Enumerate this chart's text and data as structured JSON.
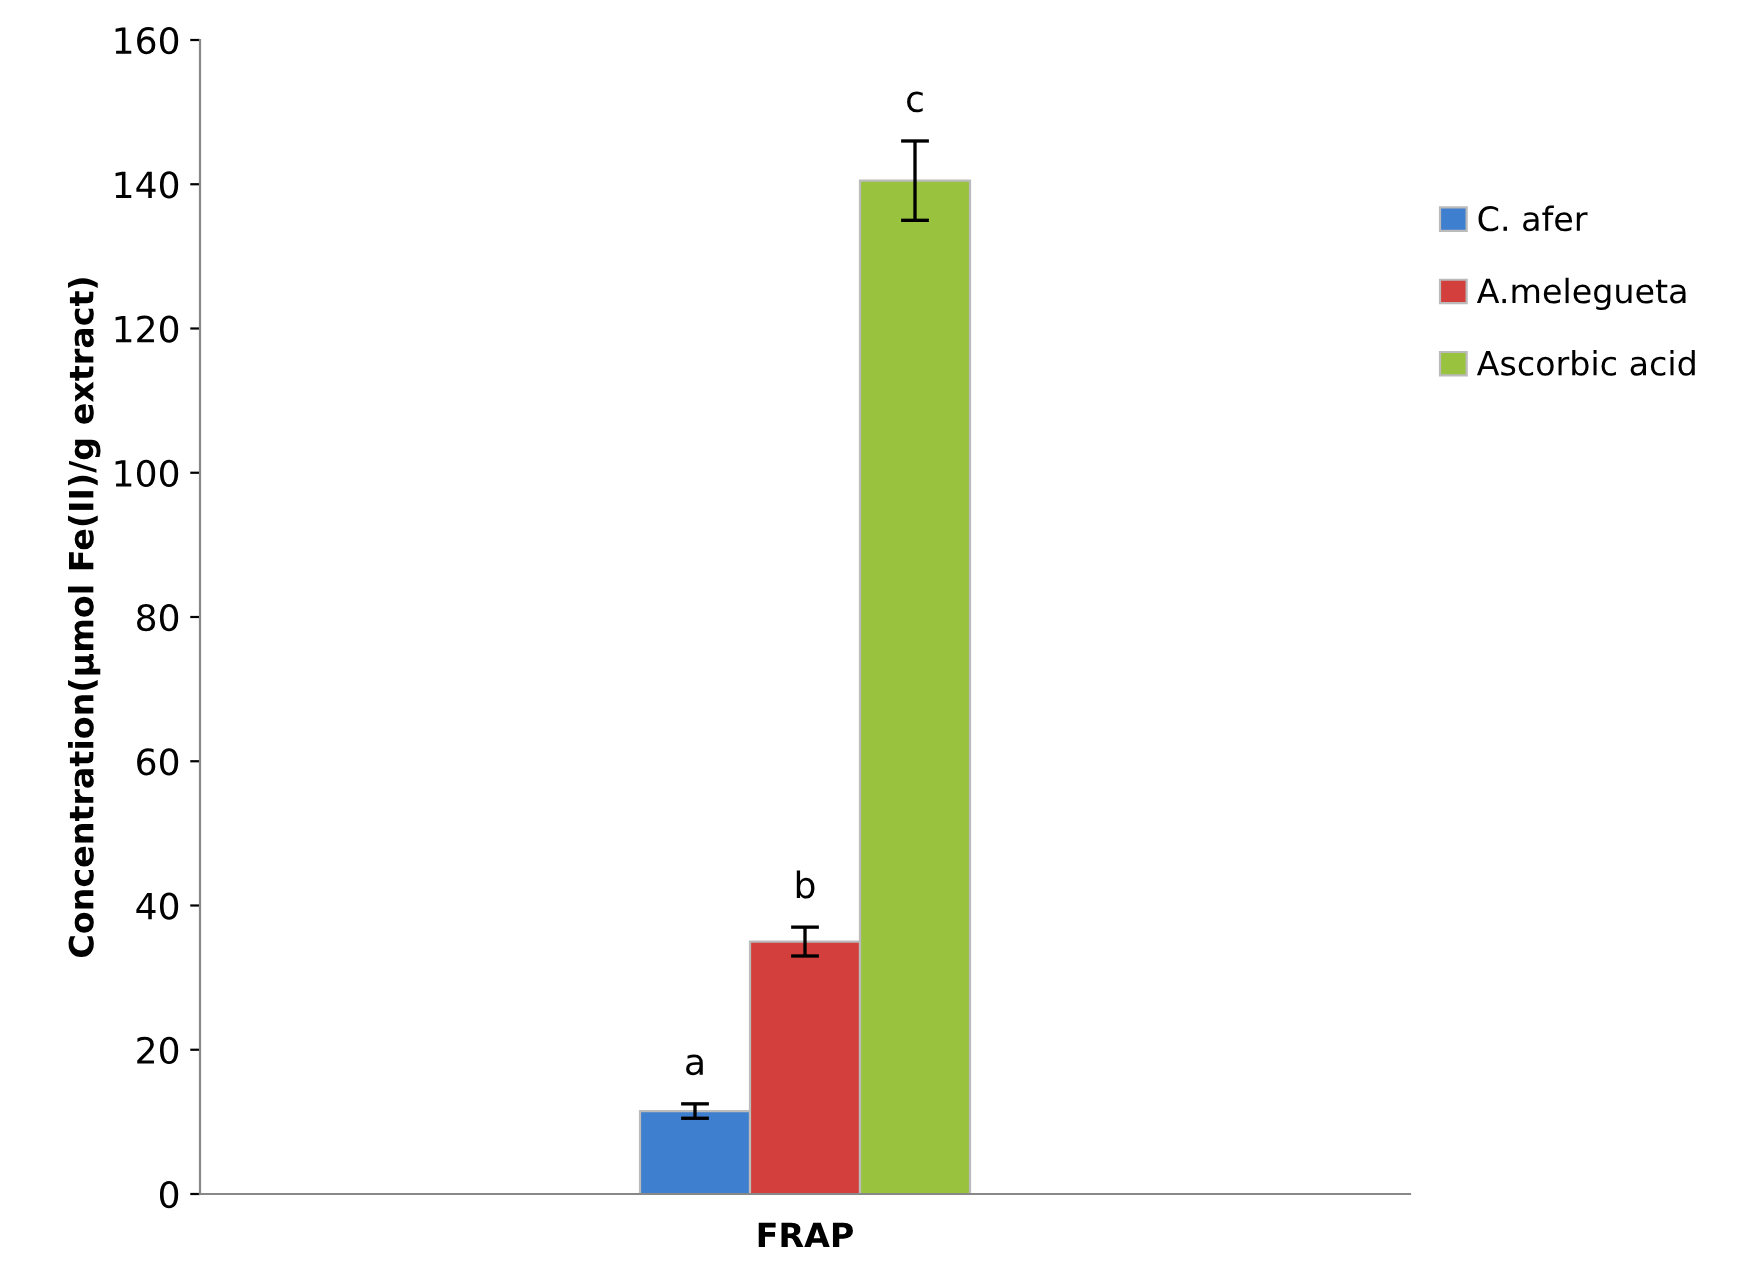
{
  "chart_data": {
    "type": "bar",
    "categories": [
      "FRAP"
    ],
    "ylabel": "Concentration(µmol Fe(II)/g extract)",
    "series": [
      {
        "name": "C. afer",
        "color": "#3f7fcf",
        "values": [
          11.5
        ],
        "errors": [
          1
        ]
      },
      {
        "name": "A.melegueta",
        "color": "#d23f3c",
        "values": [
          35
        ],
        "errors": [
          2
        ]
      },
      {
        "name": "Ascorbic acid",
        "color": "#99c23f",
        "values": [
          140.5
        ],
        "errors": [
          5.5
        ]
      }
    ],
    "annotations": [
      "a",
      "b",
      "c"
    ],
    "ylim": [
      0,
      160
    ],
    "yticks": [
      0,
      20,
      40,
      60,
      80,
      100,
      120,
      140,
      160
    ],
    "grid": false,
    "legend": "right"
  }
}
